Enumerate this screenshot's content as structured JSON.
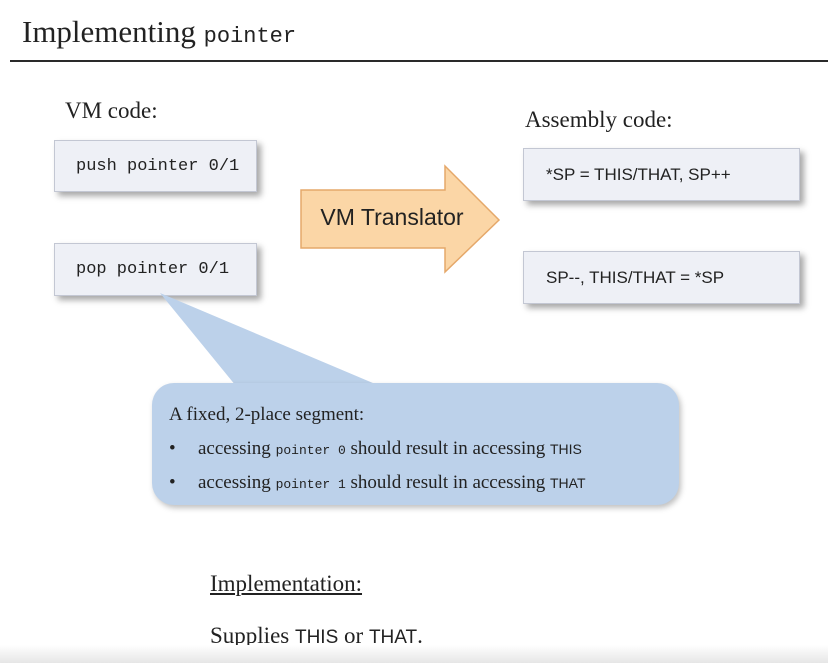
{
  "title": {
    "text": "Implementing ",
    "code": "pointer"
  },
  "vm": {
    "label": "VM code:",
    "push": "push pointer 0/1",
    "pop": "pop pointer 0/1"
  },
  "translator": {
    "label": "VM Translator"
  },
  "asm": {
    "label": "Assembly code:",
    "push": "*SP = THIS/THAT, SP++",
    "pop": "SP--, THIS/THAT = *SP"
  },
  "callout": {
    "heading": "A fixed, 2-place segment:",
    "bullet": "•",
    "items": [
      {
        "pre": "accessing ",
        "code": "pointer 0",
        "mid": " should result in accessing ",
        "target": "THIS"
      },
      {
        "pre": "accessing ",
        "code": "pointer 1",
        "mid": " should result in accessing ",
        "target": "THAT"
      }
    ]
  },
  "implementation": {
    "heading": "Implementation:",
    "pre": "Supplies ",
    "a": "THIS",
    "mid": " or ",
    "b": "THAT",
    "post": "."
  },
  "colors": {
    "arrow_fill": "#fbd6a6",
    "arrow_stroke": "#e5a86a",
    "callout_fill": "#bcd1ea",
    "box_fill": "#eef0f6"
  }
}
